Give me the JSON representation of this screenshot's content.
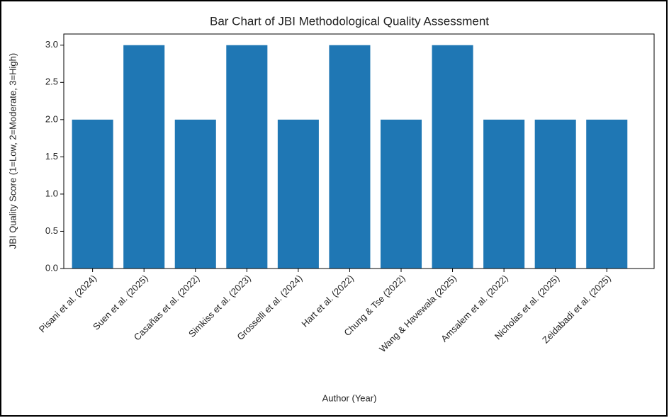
{
  "chart_data": {
    "type": "bar",
    "title": "Bar Chart of JBI Methodological Quality Assessment",
    "x_label": "Author (Year)",
    "y_label": "JBI Quality Score (1=Low, 2=Moderate, 3=High)",
    "categories": [
      "Pisani et al. (2024)",
      "Suen et al. (2025)",
      "Casañas et al. (2022)",
      "Simkiss et al. (2023)",
      "Grosselli et al. (2024)",
      "Hart et al. (2022)",
      "Chung & Tse (2022)",
      "Wang & Havewala (2025)",
      "Amsalem et al. (2022)",
      "Nicholas et al. (2025)",
      "Zeidabadi et al. (2025)"
    ],
    "values": [
      2,
      3,
      2,
      3,
      2,
      3,
      2,
      3,
      2,
      2,
      2
    ],
    "color": "#1f77b4",
    "ylim": [
      0,
      3.15
    ],
    "yticks": [
      {
        "value": 0,
        "label": "0.0"
      },
      0.5,
      {
        "value": 1,
        "label": "1.0"
      },
      1.5,
      {
        "value": 2,
        "label": "2.0"
      },
      2.5,
      {
        "value": 3,
        "label": "3.0"
      }
    ],
    "grid": false
  }
}
